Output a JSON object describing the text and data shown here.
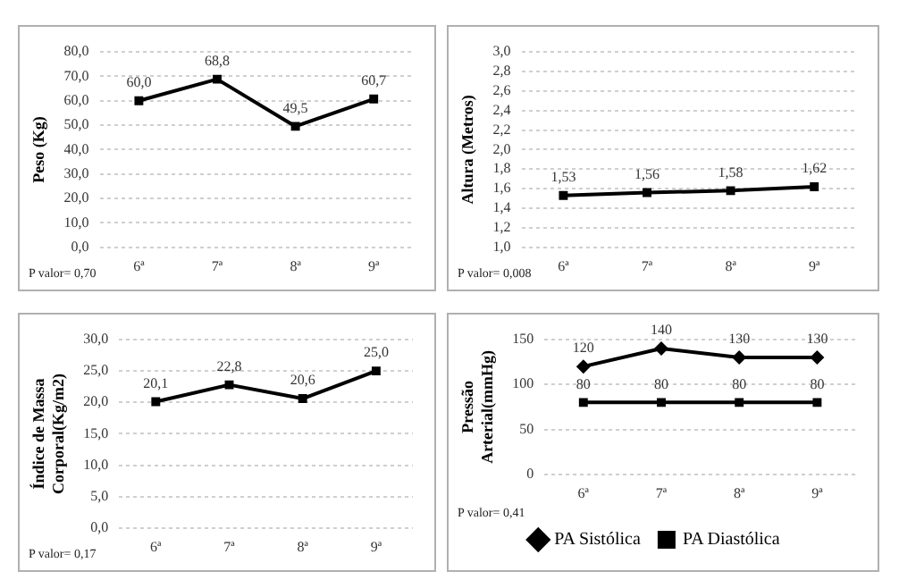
{
  "chart_data": [
    {
      "type": "line",
      "ylabel": "Peso (Kg)",
      "categories": [
        "6ª",
        "7ª",
        "8ª",
        "9ª"
      ],
      "series": [
        {
          "color": "#000000",
          "marker": "square",
          "values": [
            60.0,
            68.8,
            49.5,
            60.7
          ],
          "value_labels": [
            "60,0",
            "68,8",
            "49,5",
            "60,7"
          ]
        }
      ],
      "ylim": [
        0,
        80
      ],
      "yticks": [
        {
          "value": 0,
          "label": "0,0"
        },
        {
          "value": 10,
          "label": "10,0"
        },
        {
          "value": 20,
          "label": "20,0"
        },
        {
          "value": 30,
          "label": "30,0"
        },
        {
          "value": 40,
          "label": "40,0"
        },
        {
          "value": 50,
          "label": "50,0"
        },
        {
          "value": 60,
          "label": "60,0"
        },
        {
          "value": 70,
          "label": "70,0"
        },
        {
          "value": 80,
          "label": "80,0"
        }
      ],
      "grid": "y",
      "annotations": [
        "P valor= 0,70"
      ]
    },
    {
      "type": "line",
      "ylabel": "Altura (Metros)",
      "categories": [
        "6ª",
        "7ª",
        "8ª",
        "9ª"
      ],
      "series": [
        {
          "color": "#000000",
          "marker": "square",
          "values": [
            1.53,
            1.56,
            1.58,
            1.62
          ],
          "value_labels": [
            "1,53",
            "1,56",
            "1,58",
            "1,62"
          ]
        }
      ],
      "ylim": [
        1,
        3
      ],
      "yticks": [
        {
          "value": 1,
          "label": "1,0"
        },
        {
          "value": 1.2,
          "label": "1,2"
        },
        {
          "value": 1.4,
          "label": "1,4"
        },
        {
          "value": 1.6,
          "label": "1,6"
        },
        {
          "value": 1.8,
          "label": "1,8"
        },
        {
          "value": 2,
          "label": "2,0"
        },
        {
          "value": 2.2,
          "label": "2,2"
        },
        {
          "value": 2.4,
          "label": "2,4"
        },
        {
          "value": 2.6,
          "label": "2,6"
        },
        {
          "value": 2.8,
          "label": "2,8"
        },
        {
          "value": 3,
          "label": "3,0"
        }
      ],
      "grid": "y",
      "annotations": [
        "P valor= 0,008"
      ]
    },
    {
      "type": "line",
      "ylabel": "Índice de Massa Corporal(Kg/m2)",
      "categories": [
        "6ª",
        "7ª",
        "8ª",
        "9ª"
      ],
      "series": [
        {
          "color": "#000000",
          "marker": "square",
          "values": [
            20.1,
            22.8,
            20.6,
            25.0
          ],
          "value_labels": [
            "20,1",
            "22,8",
            "20,6",
            "25,0"
          ]
        }
      ],
      "ylim": [
        0,
        30
      ],
      "yticks": [
        {
          "value": 0,
          "label": "0,0"
        },
        {
          "value": 5,
          "label": "5,0"
        },
        {
          "value": 10,
          "label": "10,0"
        },
        {
          "value": 15,
          "label": "15,0"
        },
        {
          "value": 20,
          "label": "20,0"
        },
        {
          "value": 25,
          "label": "25,0"
        },
        {
          "value": 30,
          "label": "30,0"
        }
      ],
      "grid": "y",
      "annotations": [
        "P valor= 0,17"
      ]
    },
    {
      "type": "line",
      "ylabel": "Pressão Arterial(mmHg)",
      "categories": [
        "6ª",
        "7ª",
        "8ª",
        "9ª"
      ],
      "series": [
        {
          "name": "PA Sistólica",
          "color": "#000000",
          "marker": "diamond",
          "values": [
            120,
            140,
            130,
            130
          ],
          "value_labels": [
            "120",
            "140",
            "130",
            "130"
          ]
        },
        {
          "name": "PA Diastólica",
          "color": "#000000",
          "marker": "square",
          "values": [
            80,
            80,
            80,
            80
          ],
          "value_labels": [
            "80",
            "80",
            "80",
            "80"
          ]
        }
      ],
      "ylim": [
        0,
        150
      ],
      "yticks": [
        0,
        50,
        100,
        150
      ],
      "grid": "y",
      "legend": "bottom",
      "annotations": [
        "P valor= 0,41"
      ]
    }
  ]
}
